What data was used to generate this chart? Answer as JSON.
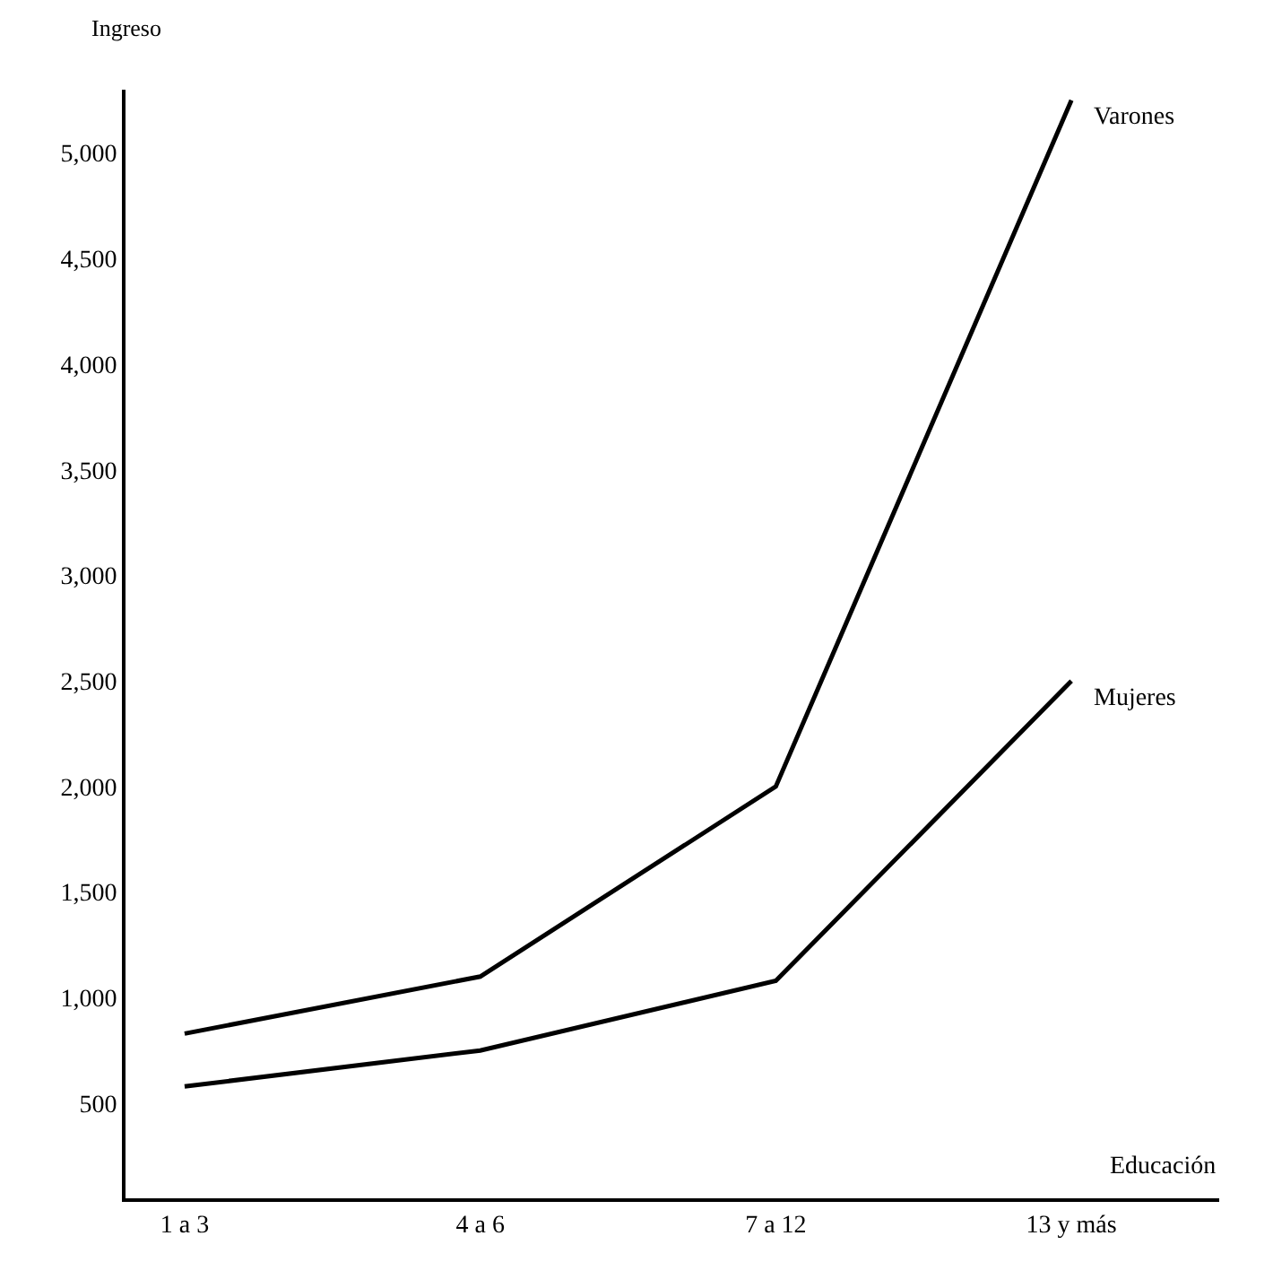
{
  "chart_data": {
    "type": "line",
    "xlabel": "Educación",
    "ylabel": "Ingreso",
    "categories": [
      "1 a 3",
      "4 a 6",
      "7 a 12",
      "13 y más"
    ],
    "series": [
      {
        "name": "Varones",
        "color": "#000000",
        "values": [
          830,
          1100,
          2000,
          5250
        ]
      },
      {
        "name": "Mujeres",
        "color": "#000000",
        "values": [
          580,
          750,
          1080,
          2500
        ]
      }
    ],
    "ylim": [
      50,
      5300
    ],
    "yticks": [
      500,
      {
        "value": 1000,
        "label": "1,000"
      },
      {
        "value": 1500,
        "label": "1,500"
      },
      {
        "value": 2000,
        "label": "2,000"
      },
      {
        "value": 2500,
        "label": "2,500"
      },
      {
        "value": 3000,
        "label": "3,000"
      },
      {
        "value": 3500,
        "label": "3,500"
      },
      {
        "value": 4000,
        "label": "4,000"
      },
      {
        "value": 4500,
        "label": "4,500"
      },
      {
        "value": 5000,
        "label": "5,000"
      }
    ],
    "legend": false,
    "marker": "none",
    "line_style": "solid"
  }
}
